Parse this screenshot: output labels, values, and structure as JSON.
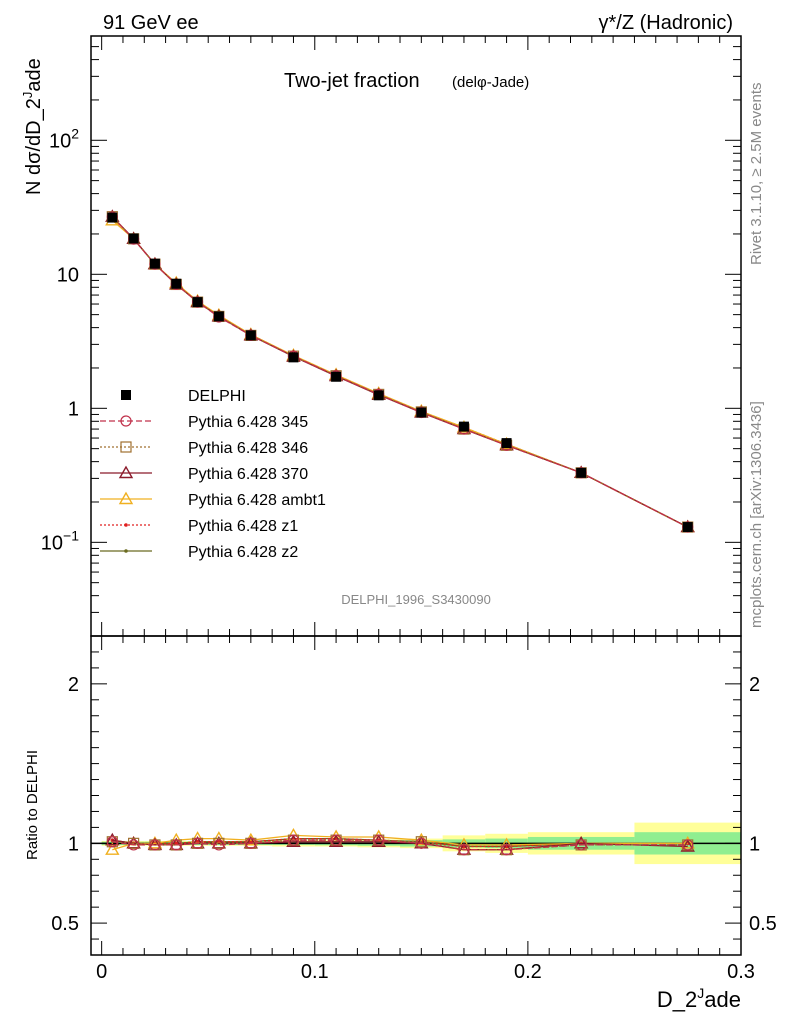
{
  "header": {
    "left": "91 GeV ee",
    "right": "γ*/Z (Hadronic)",
    "title_main": "Two-jet fraction",
    "title_sub": "(delφ-Jade)"
  },
  "side_text": {
    "rivet": "Rivet 3.1.10, ≥ 2.5M events",
    "mcplots": "mcplots.cern.ch [arXiv:1306.3436]"
  },
  "watermark": "DELPHI_1996_S3430090",
  "chart_data": [
    {
      "type": "line",
      "panel": "main",
      "ylabel": "N dσ/dD_2^Jade",
      "yscale": "log",
      "ylim": [
        0.02,
        600
      ],
      "xlim": [
        -0.005,
        0.3
      ],
      "x": [
        0.005,
        0.015,
        0.025,
        0.035,
        0.045,
        0.055,
        0.07,
        0.09,
        0.11,
        0.13,
        0.15,
        0.17,
        0.19,
        0.225,
        0.275
      ],
      "y_tick_labels": [
        "10^-1",
        "1",
        "10",
        "10^2"
      ],
      "series": [
        {
          "name": "DELPHI",
          "color": "#000000",
          "values": [
            26.5,
            18.5,
            12.0,
            8.5,
            6.2,
            4.85,
            3.5,
            2.4,
            1.72,
            1.25,
            0.93,
            0.73,
            0.55,
            0.33,
            0.13
          ]
        },
        {
          "name": "Pythia 6.428 345",
          "color": "#c0304a",
          "values": [
            26.8,
            18.3,
            11.9,
            8.4,
            6.2,
            4.8,
            3.5,
            2.45,
            1.75,
            1.27,
            0.93,
            0.7,
            0.53,
            0.33,
            0.13
          ]
        },
        {
          "name": "Pythia 6.428 346",
          "color": "#a07030",
          "values": [
            26.9,
            18.4,
            11.9,
            8.4,
            6.2,
            4.85,
            3.5,
            2.45,
            1.75,
            1.27,
            0.94,
            0.7,
            0.53,
            0.33,
            0.13
          ]
        },
        {
          "name": "Pythia 6.428 370",
          "color": "#8b1a2b",
          "values": [
            26.9,
            18.4,
            11.9,
            8.4,
            6.2,
            4.85,
            3.5,
            2.43,
            1.74,
            1.26,
            0.93,
            0.7,
            0.53,
            0.33,
            0.13
          ]
        },
        {
          "name": "Pythia 6.428 ambt1",
          "color": "#f0b020",
          "values": [
            25.3,
            18.4,
            11.9,
            8.6,
            6.3,
            4.95,
            3.55,
            2.48,
            1.78,
            1.29,
            0.95,
            0.72,
            0.54,
            0.33,
            0.13
          ]
        },
        {
          "name": "Pythia 6.428 z1",
          "color": "#e02020",
          "values": [
            26.9,
            18.4,
            11.9,
            8.5,
            6.3,
            4.9,
            3.55,
            2.46,
            1.76,
            1.27,
            0.94,
            0.72,
            0.54,
            0.33,
            0.13
          ]
        },
        {
          "name": "Pythia 6.428 z2",
          "color": "#6b6b20",
          "values": [
            26.9,
            18.4,
            11.9,
            8.5,
            6.3,
            4.9,
            3.55,
            2.46,
            1.76,
            1.27,
            0.94,
            0.71,
            0.54,
            0.33,
            0.13
          ]
        }
      ]
    },
    {
      "type": "line",
      "panel": "ratio",
      "ylabel": "Ratio to DELPHI",
      "xlabel": "D_2^Jade",
      "ylim": [
        0.3,
        2.3
      ],
      "xlim": [
        -0.005,
        0.3
      ],
      "x_tick_labels": [
        "0",
        "0.1",
        "0.2",
        "0.3"
      ],
      "y_tick_labels": [
        "0.5",
        "1",
        "2"
      ],
      "bins": [
        [
          0,
          0.01
        ],
        [
          0.01,
          0.02
        ],
        [
          0.02,
          0.03
        ],
        [
          0.03,
          0.04
        ],
        [
          0.04,
          0.05
        ],
        [
          0.05,
          0.06
        ],
        [
          0.06,
          0.08
        ],
        [
          0.08,
          0.1
        ],
        [
          0.1,
          0.12
        ],
        [
          0.12,
          0.14
        ],
        [
          0.14,
          0.16
        ],
        [
          0.16,
          0.18
        ],
        [
          0.18,
          0.2
        ],
        [
          0.2,
          0.25
        ],
        [
          0.25,
          0.3
        ]
      ],
      "band_stat": [
        0.01,
        0.01,
        0.01,
        0.01,
        0.01,
        0.01,
        0.01,
        0.01,
        0.012,
        0.015,
        0.02,
        0.025,
        0.03,
        0.04,
        0.07
      ],
      "band_total": [
        0.015,
        0.015,
        0.015,
        0.015,
        0.015,
        0.015,
        0.015,
        0.02,
        0.02,
        0.025,
        0.03,
        0.05,
        0.06,
        0.07,
        0.13
      ],
      "series": [
        {
          "name": "Pythia 6.428 345",
          "values": [
            1.01,
            0.99,
            0.99,
            0.99,
            1.0,
            0.99,
            1.0,
            1.02,
            1.02,
            1.02,
            1.0,
            0.96,
            0.96,
            0.99,
            0.99
          ]
        },
        {
          "name": "Pythia 6.428 346",
          "values": [
            1.01,
            1.0,
            0.99,
            0.99,
            1.0,
            1.0,
            1.0,
            1.02,
            1.02,
            1.02,
            1.01,
            0.96,
            0.96,
            0.99,
            0.99
          ]
        },
        {
          "name": "Pythia 6.428 370",
          "values": [
            1.02,
            1.0,
            0.99,
            0.99,
            1.0,
            1.0,
            1.0,
            1.01,
            1.01,
            1.01,
            1.0,
            0.96,
            0.96,
            1.0,
            0.98
          ]
        },
        {
          "name": "Pythia 6.428 ambt1",
          "values": [
            0.96,
            1.0,
            1.0,
            1.02,
            1.03,
            1.03,
            1.02,
            1.05,
            1.04,
            1.04,
            1.02,
            0.99,
            0.99,
            1.0,
            1.0
          ]
        },
        {
          "name": "Pythia 6.428 z1",
          "values": [
            1.02,
            1.0,
            1.0,
            1.0,
            1.01,
            1.01,
            1.01,
            1.03,
            1.03,
            1.02,
            1.01,
            0.98,
            0.98,
            1.0,
            1.0
          ]
        },
        {
          "name": "Pythia 6.428 z2",
          "values": [
            1.02,
            1.0,
            1.0,
            1.0,
            1.01,
            1.01,
            1.01,
            1.03,
            1.03,
            1.02,
            1.01,
            0.98,
            0.98,
            1.0,
            1.0
          ]
        }
      ]
    }
  ],
  "legend": [
    {
      "label": "DELPHI",
      "marker": "filled-square",
      "color": "#000000",
      "line": "none"
    },
    {
      "label": "Pythia 6.428 345",
      "marker": "open-circle",
      "color": "#c0304a",
      "line": "dashed"
    },
    {
      "label": "Pythia 6.428 346",
      "marker": "open-square",
      "color": "#a07030",
      "line": "dotted"
    },
    {
      "label": "Pythia 6.428 370",
      "marker": "open-triangle",
      "color": "#8b1a2b",
      "line": "solid"
    },
    {
      "label": "Pythia 6.428 ambt1",
      "marker": "open-triangle",
      "color": "#f0b020",
      "line": "solid"
    },
    {
      "label": "Pythia 6.428 z1",
      "marker": "dot",
      "color": "#e02020",
      "line": "dotted"
    },
    {
      "label": "Pythia 6.428 z2",
      "marker": "dot",
      "color": "#6b6b20",
      "line": "solid"
    }
  ],
  "colors": {
    "band_stat": "#90ee90",
    "band_total": "#ffff99"
  }
}
